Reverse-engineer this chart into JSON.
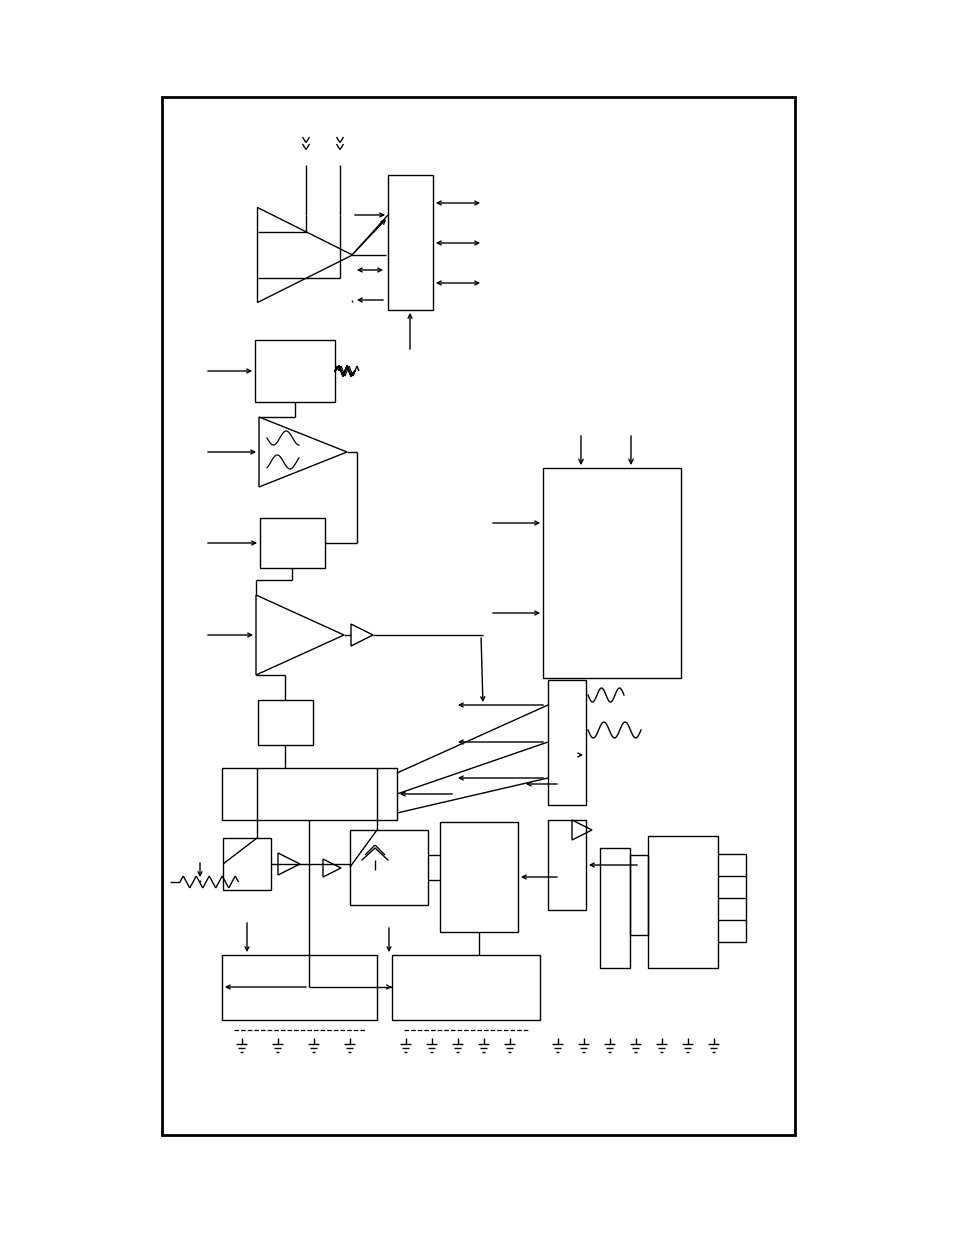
{
  "fig_width": 9.54,
  "fig_height": 12.35,
  "bg_color": "#ffffff",
  "lc": "#000000",
  "lw": 1.0,
  "border": [
    162,
    97,
    795,
    1135
  ]
}
